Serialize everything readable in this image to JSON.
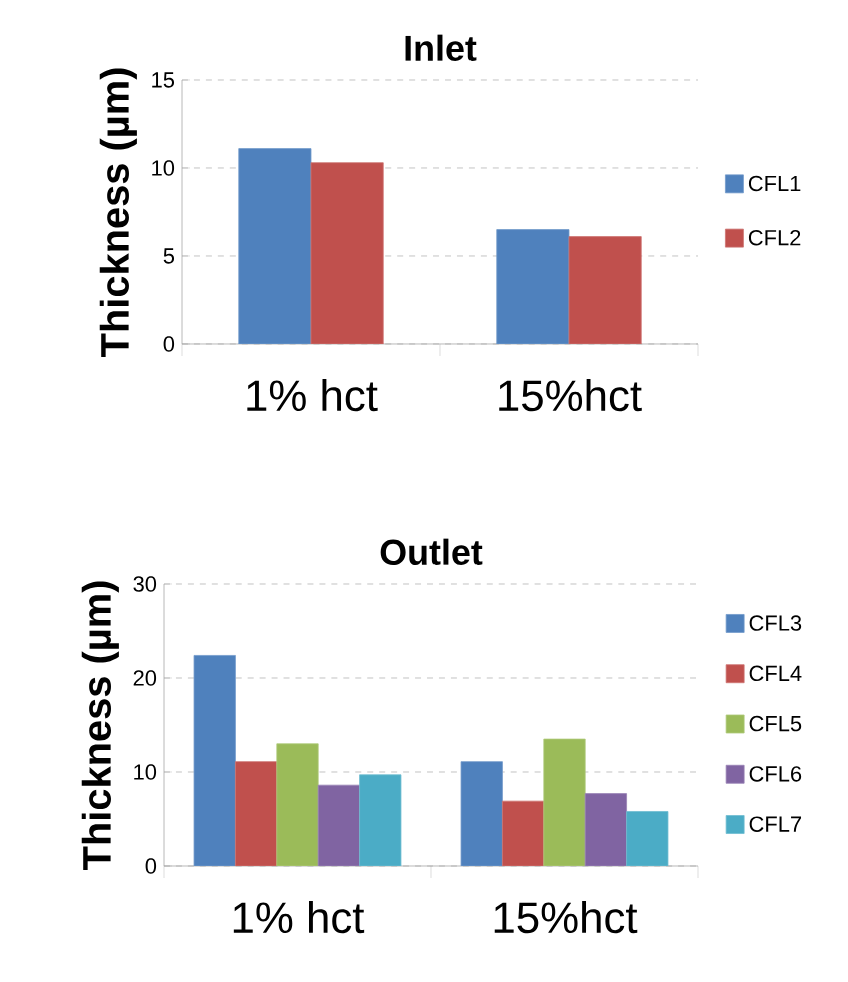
{
  "chart_data": [
    {
      "type": "bar",
      "title": "Inlet",
      "ylabel": "Thickness (µm)",
      "categories": [
        "1% hct",
        "15%hct"
      ],
      "ylim": [
        0,
        15
      ],
      "yticks": [
        0,
        5,
        10,
        15
      ],
      "grid": "y",
      "legend": "right",
      "series": [
        {
          "name": "CFL1",
          "color": "#4f81bd",
          "values": [
            11.1,
            6.5
          ]
        },
        {
          "name": "CFL2",
          "color": "#c0504d",
          "values": [
            10.3,
            6.1
          ]
        }
      ]
    },
    {
      "type": "bar",
      "title": "Outlet",
      "ylabel": "Thickness (µm)",
      "categories": [
        "1% hct",
        "15%hct"
      ],
      "ylim": [
        0,
        30
      ],
      "yticks": [
        0,
        10,
        20,
        30
      ],
      "grid": "y",
      "legend": "right",
      "series": [
        {
          "name": "CFL3",
          "color": "#4f81bd",
          "values": [
            22.4,
            11.1
          ]
        },
        {
          "name": "CFL4",
          "color": "#c0504d",
          "values": [
            11.1,
            6.9
          ]
        },
        {
          "name": "CFL5",
          "color": "#9bbb59",
          "values": [
            13.0,
            13.5
          ]
        },
        {
          "name": "CFL6",
          "color": "#8064a2",
          "values": [
            8.6,
            7.7
          ]
        },
        {
          "name": "CFL7",
          "color": "#4bacc6",
          "values": [
            9.7,
            5.8
          ]
        }
      ]
    }
  ]
}
